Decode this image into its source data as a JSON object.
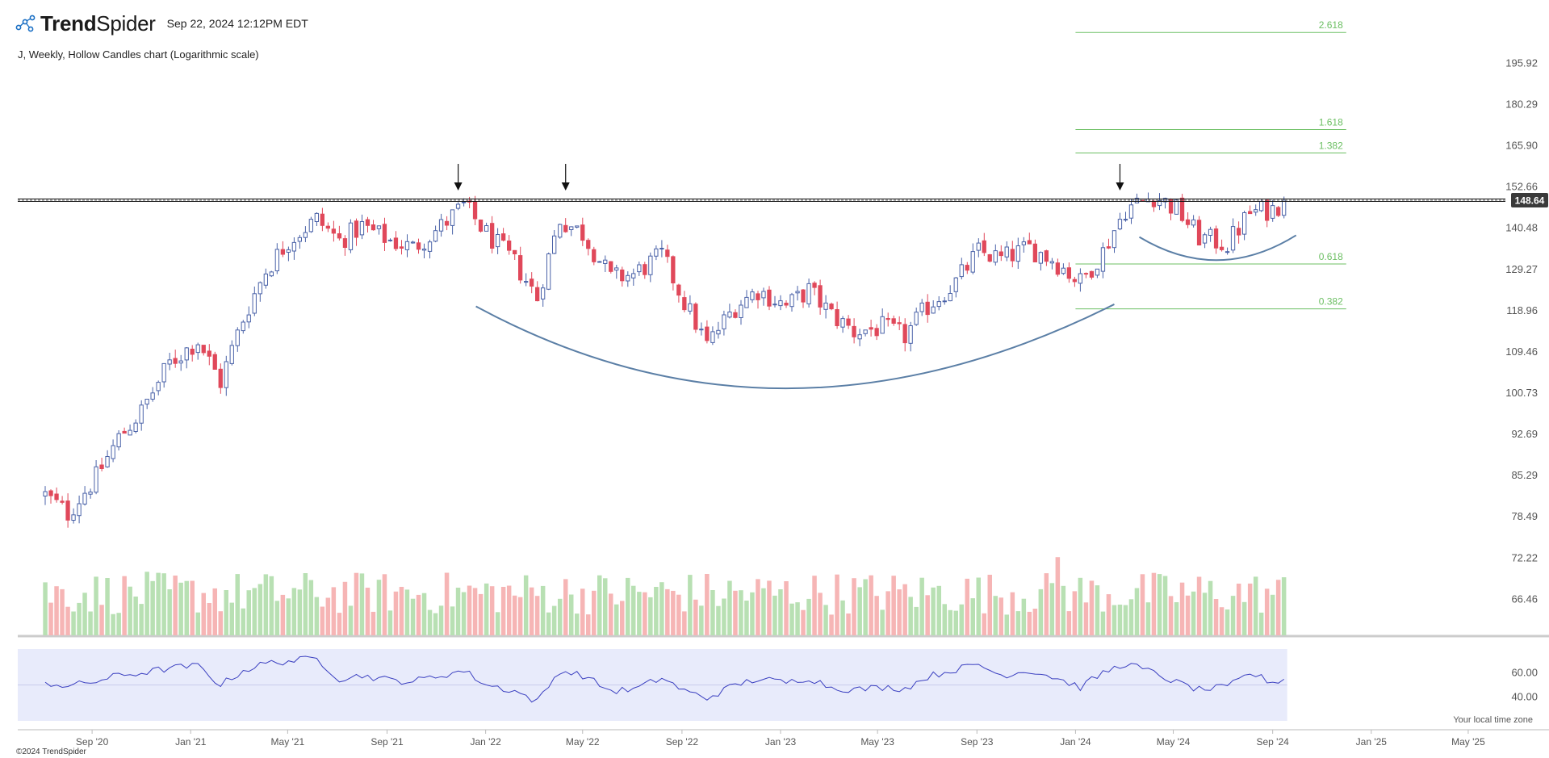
{
  "header": {
    "brand_prefix": "Trend",
    "brand_suffix": "Spider",
    "timestamp": "Sep 22, 2024 12:12PM EDT"
  },
  "chart_data": {
    "type": "candlestick",
    "title": "J, Weekly, Hollow Candles chart (Logarithmic scale)",
    "symbol": "J",
    "interval": "Weekly",
    "scale": "log",
    "y_tick_labels": [
      "195.92",
      "180.29",
      "165.90",
      "152.66",
      "140.48",
      "129.27",
      "118.96",
      "109.46",
      "100.73",
      "92.69",
      "85.29",
      "78.49",
      "72.22",
      "66.46"
    ],
    "x_tick_labels": [
      "Sep '20",
      "Jan '21",
      "May '21",
      "Sep '21",
      "Jan '22",
      "May '22",
      "Sep '22",
      "Jan '23",
      "May '23",
      "Sep '23",
      "Jan '24",
      "May '24",
      "Sep '24",
      "Jan '25",
      "May '25"
    ],
    "x_range": [
      "2020-06",
      "2025-07"
    ],
    "ylim": [
      61,
      212
    ],
    "last_price": "148.64",
    "resistance_level": 148.64,
    "fibonacci_levels": [
      {
        "label": "2.618",
        "value": 208.5
      },
      {
        "label": "1.618",
        "value": 171.4
      },
      {
        "label": "1.382",
        "value": 163.5
      },
      {
        "label": "0.618",
        "value": 130.7
      },
      {
        "label": "0.382",
        "value": 119.4
      }
    ],
    "price_path": [
      [
        "2020-07-05",
        82
      ],
      [
        "2020-08-02",
        79
      ],
      [
        "2020-09-06",
        85
      ],
      [
        "2020-10-04",
        92
      ],
      [
        "2020-11-01",
        97
      ],
      [
        "2020-12-06",
        107
      ],
      [
        "2021-01-10",
        112
      ],
      [
        "2021-02-07",
        103
      ],
      [
        "2021-03-07",
        117
      ],
      [
        "2021-04-04",
        129
      ],
      [
        "2021-05-02",
        137
      ],
      [
        "2021-06-06",
        143
      ],
      [
        "2021-07-04",
        137
      ],
      [
        "2021-08-01",
        141
      ],
      [
        "2021-09-05",
        137
      ],
      [
        "2021-10-03",
        135
      ],
      [
        "2021-11-07",
        141
      ],
      [
        "2021-12-05",
        147
      ],
      [
        "2022-01-02",
        139
      ],
      [
        "2022-02-06",
        131
      ],
      [
        "2022-03-06",
        122
      ],
      [
        "2022-04-03",
        143
      ],
      [
        "2022-05-01",
        139
      ],
      [
        "2022-06-05",
        127
      ],
      [
        "2022-07-03",
        128
      ],
      [
        "2022-08-07",
        133
      ],
      [
        "2022-09-04",
        121
      ],
      [
        "2022-10-02",
        111
      ],
      [
        "2022-11-06",
        120
      ],
      [
        "2022-12-04",
        124
      ],
      [
        "2023-01-08",
        120
      ],
      [
        "2023-02-05",
        124
      ],
      [
        "2023-03-05",
        118
      ],
      [
        "2023-04-02",
        114
      ],
      [
        "2023-05-07",
        115
      ],
      [
        "2023-06-04",
        113
      ],
      [
        "2023-07-02",
        120
      ],
      [
        "2023-08-06",
        126
      ],
      [
        "2023-09-03",
        134
      ],
      [
        "2023-10-01",
        132
      ],
      [
        "2023-11-05",
        135
      ],
      [
        "2023-12-03",
        132
      ],
      [
        "2024-01-07",
        126
      ],
      [
        "2024-02-04",
        134
      ],
      [
        "2024-03-03",
        146
      ],
      [
        "2024-04-07",
        150
      ],
      [
        "2024-05-05",
        146
      ],
      [
        "2024-06-02",
        138
      ],
      [
        "2024-07-07",
        136
      ],
      [
        "2024-08-04",
        145
      ],
      [
        "2024-09-01",
        146
      ],
      [
        "2024-09-15",
        148.64
      ]
    ],
    "volume_range": [
      0.5,
      1.9
    ],
    "volume_peak_date": "2023-12-10",
    "rsi": {
      "y_tick_labels": [
        "60.00",
        "40.00"
      ],
      "path": [
        [
          "2020-07-05",
          52
        ],
        [
          "2020-08-02",
          49
        ],
        [
          "2020-09-06",
          53
        ],
        [
          "2020-10-04",
          58
        ],
        [
          "2020-11-01",
          60
        ],
        [
          "2020-12-06",
          64
        ],
        [
          "2021-01-10",
          66
        ],
        [
          "2021-02-07",
          50
        ],
        [
          "2021-03-07",
          62
        ],
        [
          "2021-04-04",
          68
        ],
        [
          "2021-05-02",
          70
        ],
        [
          "2021-06-06",
          72
        ],
        [
          "2021-07-04",
          55
        ],
        [
          "2021-08-01",
          58
        ],
        [
          "2021-09-05",
          54
        ],
        [
          "2021-10-03",
          53
        ],
        [
          "2021-11-07",
          58
        ],
        [
          "2021-12-05",
          62
        ],
        [
          "2022-01-02",
          50
        ],
        [
          "2022-02-06",
          45
        ],
        [
          "2022-03-06",
          36
        ],
        [
          "2022-04-03",
          62
        ],
        [
          "2022-05-01",
          58
        ],
        [
          "2022-06-05",
          45
        ],
        [
          "2022-07-03",
          46
        ],
        [
          "2022-08-07",
          56
        ],
        [
          "2022-09-04",
          45
        ],
        [
          "2022-10-02",
          39
        ],
        [
          "2022-11-06",
          50
        ],
        [
          "2022-12-04",
          55
        ],
        [
          "2023-01-08",
          52
        ],
        [
          "2023-02-05",
          56
        ],
        [
          "2023-03-05",
          48
        ],
        [
          "2023-04-02",
          46
        ],
        [
          "2023-05-07",
          48
        ],
        [
          "2023-06-04",
          47
        ],
        [
          "2023-07-02",
          57
        ],
        [
          "2023-08-06",
          63
        ],
        [
          "2023-09-03",
          67
        ],
        [
          "2023-10-01",
          58
        ],
        [
          "2023-11-05",
          62
        ],
        [
          "2023-12-03",
          57
        ],
        [
          "2024-01-07",
          48
        ],
        [
          "2024-02-04",
          60
        ],
        [
          "2024-03-03",
          68
        ],
        [
          "2024-04-07",
          60
        ],
        [
          "2024-05-05",
          52
        ],
        [
          "2024-06-02",
          46
        ],
        [
          "2024-07-07",
          48
        ],
        [
          "2024-08-04",
          60
        ],
        [
          "2024-09-01",
          52
        ],
        [
          "2024-09-15",
          55
        ]
      ]
    },
    "annotation_arrows": [
      "2021-11-28",
      "2022-04-10",
      "2024-02-25"
    ],
    "colors": {
      "up_candle": "#4a62a8",
      "down_candle": "#e0485a",
      "volume_up": "#b8e0b3",
      "volume_down": "#f6b5b5",
      "fib_line": "#6cbf63",
      "curve": "#5b7fa6",
      "rsi_line": "#3a3fc0",
      "rsi_band": "#e8ebfb"
    }
  },
  "footer": {
    "timezone_note": "Your local time zone",
    "copyright": "©2024 TrendSpider"
  }
}
